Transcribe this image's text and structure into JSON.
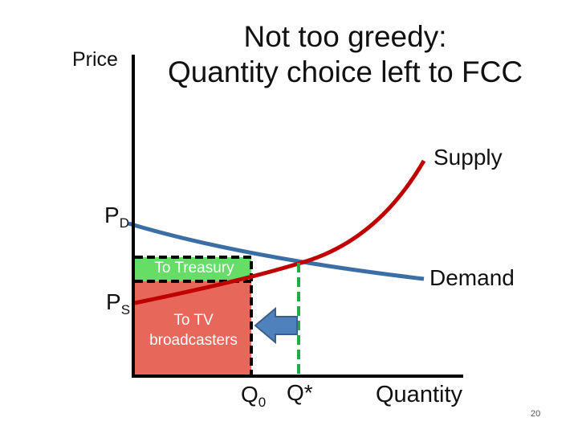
{
  "slide": {
    "title_line1": "Not too greedy:",
    "title_line2": "Quantity choice left to FCC",
    "page_number": "20"
  },
  "axes": {
    "y_label": "Price",
    "x_label": "Quantity"
  },
  "curves": {
    "supply_label": "Supply",
    "demand_label": "Demand"
  },
  "prices": {
    "pd_main": "P",
    "pd_sub": "D",
    "ps_main": "P",
    "ps_sub": "S"
  },
  "quantities": {
    "q0_main": "Q",
    "q0_sub": "0",
    "qstar": "Q*"
  },
  "regions": {
    "treasury_label": "To Treasury",
    "broadcasters_label": "To TV broadcasters"
  },
  "colors": {
    "supply": "#c00000",
    "demand": "#3a6ea5",
    "treasury_fill": "#66dd66",
    "broadcasters_fill": "#e8675b",
    "qstar_line": "#22aa44",
    "arrow": "#4f81bd"
  }
}
